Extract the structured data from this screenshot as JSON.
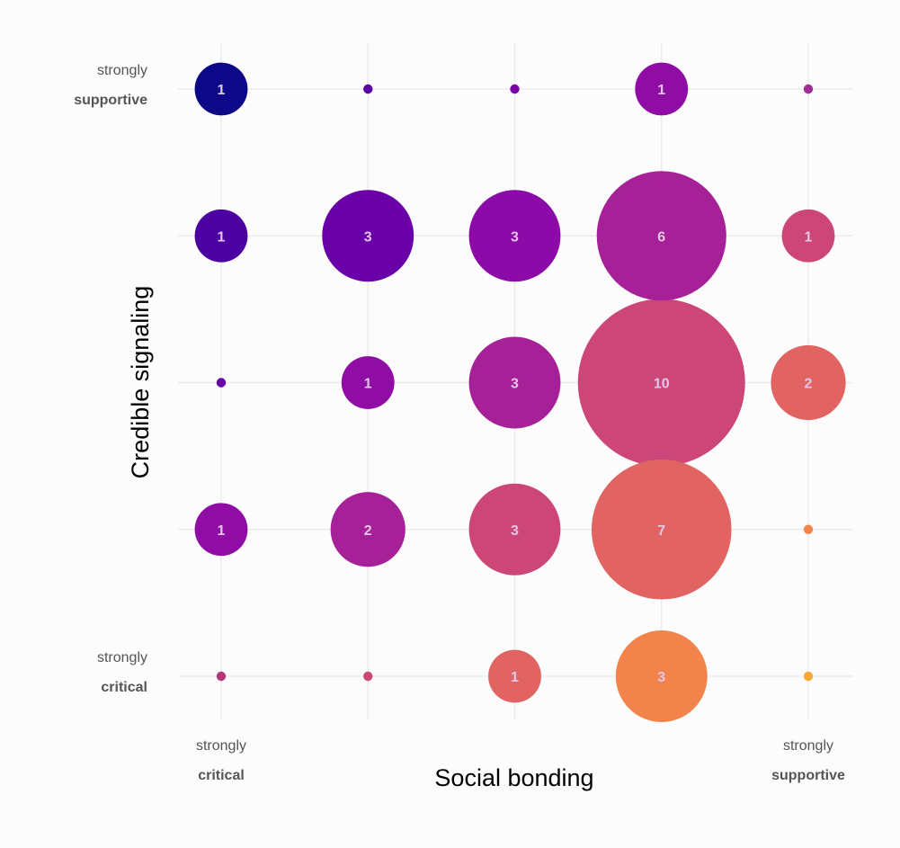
{
  "chart_data": {
    "type": "scatter",
    "variant": "bubble",
    "xlabel": "Social bonding",
    "ylabel": "Credible signaling",
    "x_scale": [
      1,
      2,
      3,
      4,
      5
    ],
    "y_scale": [
      1,
      2,
      3,
      4,
      5
    ],
    "x_endpoints": [
      {
        "line1": "strongly",
        "line2": "critical"
      },
      {
        "line1": "strongly",
        "line2": "supportive"
      }
    ],
    "y_endpoints": [
      {
        "line1": "strongly",
        "line2": "supportive"
      },
      {
        "line1": "strongly",
        "line2": "critical"
      }
    ],
    "grid": true,
    "points": [
      {
        "x": 1,
        "y": 5,
        "count": 1,
        "label": "1",
        "color": "#0d0887"
      },
      {
        "x": 2,
        "y": 5,
        "count": 0,
        "label": "",
        "color": "#5b02a3"
      },
      {
        "x": 3,
        "y": 5,
        "count": 0,
        "label": "",
        "color": "#7b02a8"
      },
      {
        "x": 4,
        "y": 5,
        "count": 1,
        "label": "1",
        "color": "#8f0da4"
      },
      {
        "x": 5,
        "y": 5,
        "count": 0,
        "label": "",
        "color": "#a32b9b"
      },
      {
        "x": 1,
        "y": 4,
        "count": 1,
        "label": "1",
        "color": "#4c02a1"
      },
      {
        "x": 2,
        "y": 4,
        "count": 3,
        "label": "3",
        "color": "#6a00a8"
      },
      {
        "x": 3,
        "y": 4,
        "count": 3,
        "label": "3",
        "color": "#8c0aa7"
      },
      {
        "x": 4,
        "y": 4,
        "count": 6,
        "label": "6",
        "color": "#a62198"
      },
      {
        "x": 5,
        "y": 4,
        "count": 1,
        "label": "1",
        "color": "#cc4778"
      },
      {
        "x": 1,
        "y": 3,
        "count": 0,
        "label": "",
        "color": "#6a00a8"
      },
      {
        "x": 2,
        "y": 3,
        "count": 1,
        "label": "1",
        "color": "#8f0da4"
      },
      {
        "x": 3,
        "y": 3,
        "count": 3,
        "label": "3",
        "color": "#a62198"
      },
      {
        "x": 4,
        "y": 3,
        "count": 10,
        "label": "10",
        "color": "#cc4778"
      },
      {
        "x": 5,
        "y": 3,
        "count": 2,
        "label": "2",
        "color": "#e16462"
      },
      {
        "x": 1,
        "y": 2,
        "count": 1,
        "label": "1",
        "color": "#8f0da4"
      },
      {
        "x": 2,
        "y": 2,
        "count": 2,
        "label": "2",
        "color": "#a62198"
      },
      {
        "x": 3,
        "y": 2,
        "count": 3,
        "label": "3",
        "color": "#cc4778"
      },
      {
        "x": 4,
        "y": 2,
        "count": 7,
        "label": "7",
        "color": "#e16462"
      },
      {
        "x": 5,
        "y": 2,
        "count": 0,
        "label": "",
        "color": "#f2844b"
      },
      {
        "x": 1,
        "y": 1,
        "count": 0,
        "label": "",
        "color": "#b5367a"
      },
      {
        "x": 2,
        "y": 1,
        "count": 0,
        "label": "",
        "color": "#cc4778"
      },
      {
        "x": 3,
        "y": 1,
        "count": 1,
        "label": "1",
        "color": "#e16462"
      },
      {
        "x": 4,
        "y": 1,
        "count": 3,
        "label": "3",
        "color": "#f2844b"
      },
      {
        "x": 5,
        "y": 1,
        "count": 0,
        "label": "",
        "color": "#fca636"
      }
    ],
    "colors": {
      "background": "#fcfcfc",
      "grid": "#ebebeb",
      "label_text": "#e3c6e8",
      "axis_text": "#555555",
      "title_text": "#000000"
    }
  }
}
